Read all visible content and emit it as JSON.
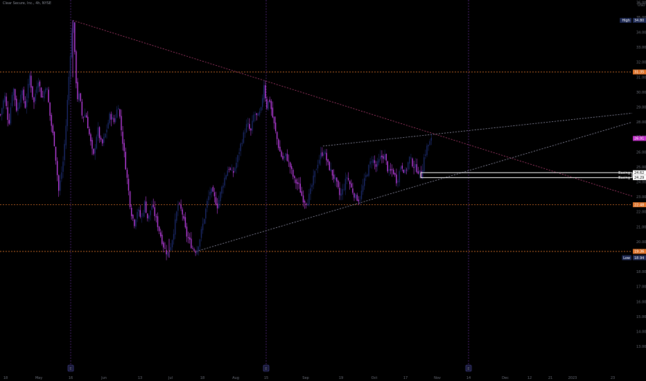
{
  "header": {
    "legend": "Clear Secure, Inc., 4h, NYSE"
  },
  "colors": {
    "background": "#000000",
    "candle_up": "#1b2a6b",
    "candle_down": "#c040e8",
    "axis_text": "#6b6f7a",
    "resistance_trend": "#a83a6a",
    "support_trend": "#8a8aa0",
    "horizontal_level": "#e0742a",
    "event_line": "#5a2a8a",
    "high_low_tag": "#1e2a55",
    "level_tag": "#e0742a",
    "current_tag": "#c030c8"
  },
  "chart_data": {
    "type": "candlestick",
    "title": "Clear Secure, Inc., 4h, NYSE",
    "currency": "USD",
    "ylim": [
      12.6,
      36.4
    ],
    "y_ticks": [
      13.0,
      14.0,
      15.0,
      16.0,
      17.0,
      18.0,
      19.0,
      20.0,
      21.0,
      22.0,
      23.0,
      24.0,
      25.0,
      26.0,
      27.0,
      28.0,
      29.0,
      30.0,
      31.0,
      32.0,
      33.0,
      34.0,
      35.0,
      36.0
    ],
    "x_ticks": [
      "18",
      "May",
      "16",
      "Jun",
      "13",
      "Jul",
      "18",
      "Aug",
      "15",
      "Sep",
      "19",
      "Oct",
      "17",
      "Nov",
      "14",
      "Dec",
      "12",
      "21",
      "2023",
      "23"
    ],
    "price_tags": [
      {
        "label": "High",
        "value": "34.80",
        "price": 34.8,
        "kind": "high-low"
      },
      {
        "label": "",
        "value": "31.35",
        "price": 31.35,
        "kind": "level"
      },
      {
        "label": "",
        "value": "26.91",
        "price": 26.91,
        "kind": "current"
      },
      {
        "label": "Basing",
        "value": "24.62",
        "price": 24.62,
        "kind": "basing"
      },
      {
        "label": "Basing",
        "value": "24.29",
        "price": 24.29,
        "kind": "basing"
      },
      {
        "label": "",
        "value": "22.48",
        "price": 22.48,
        "kind": "level"
      },
      {
        "label": "",
        "value": "19.36",
        "price": 19.36,
        "kind": "level"
      },
      {
        "label": "Low",
        "value": "18.94",
        "price": 18.94,
        "kind": "high-low"
      }
    ],
    "horizontal_levels": [
      31.35,
      22.48,
      19.36
    ],
    "trendlines": [
      {
        "name": "resistance",
        "from": [
          "16",
          34.8
        ],
        "to": [
          "2023",
          23.1
        ]
      },
      {
        "name": "support",
        "from": [
          "Jul 18",
          19.36
        ],
        "to": [
          "23",
          28.0
        ]
      },
      {
        "name": "rising-channel-top",
        "from": [
          "Sep",
          26.4
        ],
        "to": [
          "23",
          28.6
        ]
      }
    ],
    "basing_zone": [
      24.29,
      24.62
    ],
    "event_markers": [
      "E",
      "E",
      "E"
    ],
    "price_path": [
      [
        0,
        28.5
      ],
      [
        6,
        29.8
      ],
      [
        12,
        27.8
      ],
      [
        18,
        30.5
      ],
      [
        24,
        28.6
      ],
      [
        30,
        30.2
      ],
      [
        36,
        29.0
      ],
      [
        42,
        31.1
      ],
      [
        48,
        29.2
      ],
      [
        54,
        31.0
      ],
      [
        60,
        29.5
      ],
      [
        66,
        30.6
      ],
      [
        72,
        28.2
      ],
      [
        78,
        26.5
      ],
      [
        84,
        23.4
      ],
      [
        90,
        25.2
      ],
      [
        94,
        27.4
      ],
      [
        98,
        30.5
      ],
      [
        102,
        33.5
      ],
      [
        105,
        34.8
      ],
      [
        108,
        31.5
      ],
      [
        111,
        29.6
      ],
      [
        114,
        29.8
      ],
      [
        118,
        28.3
      ],
      [
        123,
        28.6
      ],
      [
        128,
        27.2
      ],
      [
        134,
        25.6
      ],
      [
        140,
        27.6
      ],
      [
        146,
        26.4
      ],
      [
        152,
        27.3
      ],
      [
        158,
        28.5
      ],
      [
        164,
        28.0
      ],
      [
        170,
        29.2
      ],
      [
        174,
        27.6
      ],
      [
        178,
        26.1
      ],
      [
        183,
        24.1
      ],
      [
        188,
        22.1
      ],
      [
        193,
        21.2
      ],
      [
        198,
        22.2
      ],
      [
        203,
        21.5
      ],
      [
        208,
        22.6
      ],
      [
        213,
        21.4
      ],
      [
        218,
        22.5
      ],
      [
        224,
        21.6
      ],
      [
        230,
        20.6
      ],
      [
        236,
        19.6
      ],
      [
        241,
        19.2
      ],
      [
        246,
        19.8
      ],
      [
        251,
        21.0
      ],
      [
        256,
        22.5
      ],
      [
        262,
        22.0
      ],
      [
        268,
        20.5
      ],
      [
        273,
        20.0
      ],
      [
        278,
        19.5
      ],
      [
        283,
        19.4
      ],
      [
        288,
        20.3
      ],
      [
        293,
        21.4
      ],
      [
        298,
        22.6
      ],
      [
        303,
        23.5
      ],
      [
        308,
        23.0
      ],
      [
        313,
        22.4
      ],
      [
        318,
        23.4
      ],
      [
        323,
        24.2
      ],
      [
        329,
        25.0
      ],
      [
        335,
        24.5
      ],
      [
        341,
        25.4
      ],
      [
        346,
        26.4
      ],
      [
        351,
        27.2
      ],
      [
        356,
        27.9
      ],
      [
        361,
        27.3
      ],
      [
        366,
        28.6
      ],
      [
        371,
        28.3
      ],
      [
        376,
        28.8
      ],
      [
        380,
        30.6
      ],
      [
        384,
        29.0
      ],
      [
        388,
        29.6
      ],
      [
        392,
        28.5
      ],
      [
        397,
        27.3
      ],
      [
        402,
        26.2
      ],
      [
        407,
        25.5
      ],
      [
        412,
        25.8
      ],
      [
        418,
        25.0
      ],
      [
        424,
        24.1
      ],
      [
        430,
        23.8
      ],
      [
        436,
        22.9
      ],
      [
        442,
        22.6
      ],
      [
        447,
        23.3
      ],
      [
        452,
        24.3
      ],
      [
        457,
        25.2
      ],
      [
        462,
        25.8
      ],
      [
        467,
        26.1
      ],
      [
        472,
        25.2
      ],
      [
        478,
        24.6
      ],
      [
        484,
        24.0
      ],
      [
        490,
        23.0
      ],
      [
        495,
        23.6
      ],
      [
        500,
        24.4
      ],
      [
        506,
        23.6
      ],
      [
        512,
        23.0
      ],
      [
        518,
        22.8
      ],
      [
        524,
        23.9
      ],
      [
        530,
        24.8
      ],
      [
        536,
        25.6
      ],
      [
        542,
        25.0
      ],
      [
        548,
        25.6
      ],
      [
        554,
        25.8
      ],
      [
        560,
        24.6
      ],
      [
        566,
        24.8
      ],
      [
        572,
        24.0
      ],
      [
        578,
        25.2
      ],
      [
        584,
        24.6
      ],
      [
        590,
        25.6
      ],
      [
        596,
        25.1
      ],
      [
        602,
        24.8
      ],
      [
        607,
        24.4
      ],
      [
        611,
        25.6
      ],
      [
        615,
        26.3
      ],
      [
        619,
        26.6
      ],
      [
        623,
        26.91
      ]
    ]
  }
}
